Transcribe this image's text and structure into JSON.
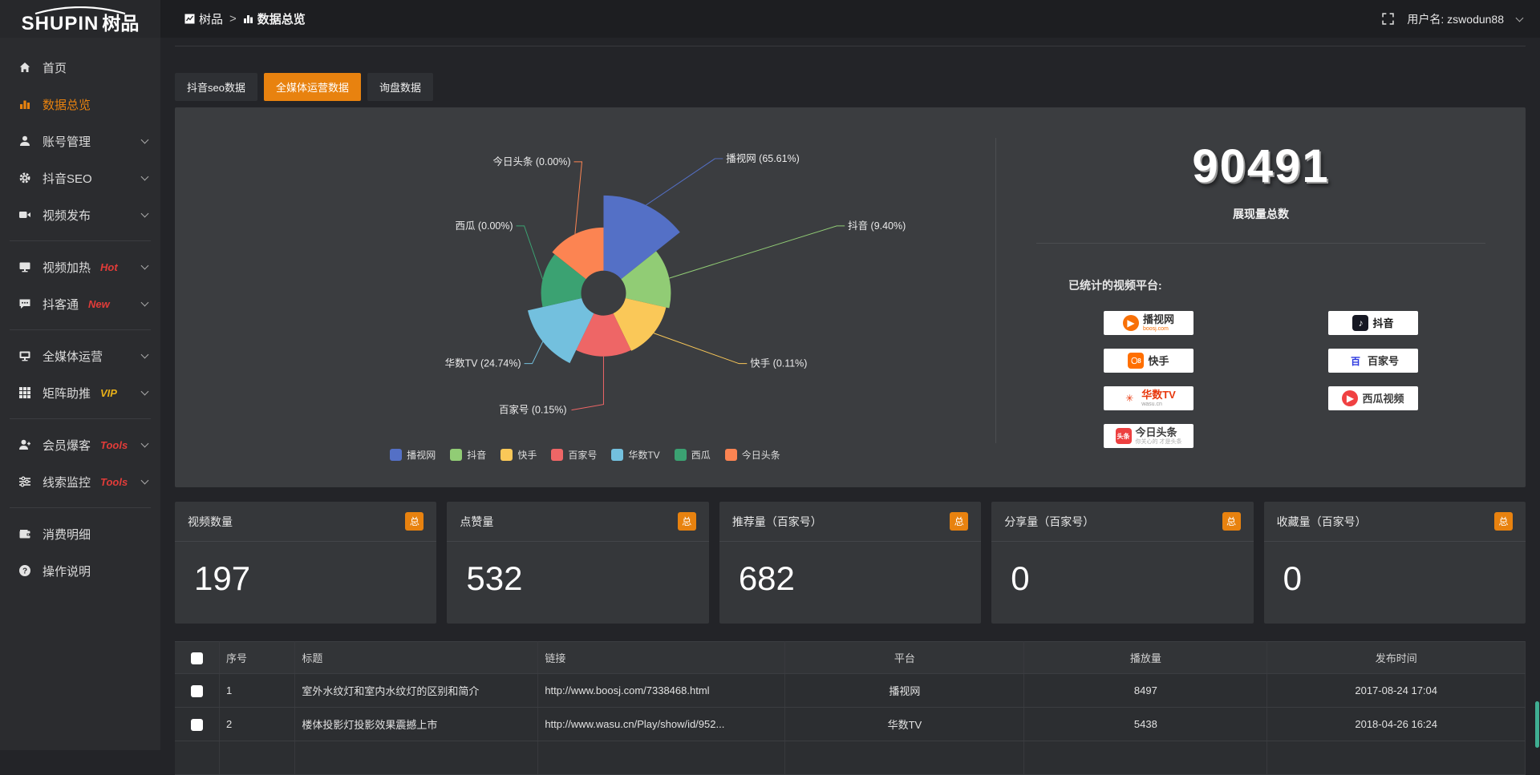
{
  "topbar": {
    "logo_en": "SHUPIN",
    "logo_cn": "树品",
    "breadcrumb": {
      "root": "树品",
      "separator": ">",
      "current": "数据总览"
    },
    "username": "用户名: zswodun88"
  },
  "sidebar": {
    "items": [
      {
        "icon": "home",
        "label": "首页"
      },
      {
        "icon": "bar-chart",
        "label": "数据总览",
        "active": true
      },
      {
        "icon": "user",
        "label": "账号管理",
        "expandable": true
      },
      {
        "icon": "gear",
        "label": "抖音SEO",
        "expandable": true
      },
      {
        "icon": "video",
        "label": "视频发布",
        "expandable": true
      },
      {
        "type": "divider"
      },
      {
        "icon": "monitor",
        "label": "视频加热",
        "badge": "Hot",
        "badge_color": "#e23c39",
        "expandable": true
      },
      {
        "icon": "chat",
        "label": "抖客通",
        "badge": "New",
        "badge_color": "#e23c39",
        "expandable": true
      },
      {
        "type": "divider"
      },
      {
        "icon": "screen",
        "label": "全媒体运营",
        "expandable": true
      },
      {
        "icon": "grid",
        "label": "矩阵助推",
        "badge": "VIP",
        "badge_color": "#e8b019",
        "expandable": true
      },
      {
        "type": "divider"
      },
      {
        "icon": "member",
        "label": "会员爆客",
        "badge": "Tools",
        "badge_color": "#e23c39",
        "expandable": true
      },
      {
        "icon": "sliders",
        "label": "线索监控",
        "badge": "Tools",
        "badge_color": "#e23c39",
        "expandable": true
      },
      {
        "type": "divider"
      },
      {
        "icon": "wallet",
        "label": "消费明细"
      },
      {
        "icon": "question",
        "label": "操作说明"
      }
    ]
  },
  "tabs": [
    {
      "label": "抖音seo数据",
      "active": false
    },
    {
      "label": "全媒体运营数据",
      "active": true
    },
    {
      "label": "询盘数据",
      "active": false
    }
  ],
  "chart_data": {
    "type": "pie",
    "variant": "nightingale-rose",
    "title": "",
    "legend_position": "bottom",
    "label_format": "{name} ({pct}%)",
    "series": [
      {
        "name": "播视网",
        "pct": "65.61",
        "value": 65.61
      },
      {
        "name": "抖音",
        "pct": "9.40",
        "value": 9.4
      },
      {
        "name": "快手",
        "pct": "0.11",
        "value": 0.11
      },
      {
        "name": "百家号",
        "pct": "0.15",
        "value": 0.15
      },
      {
        "name": "华数TV",
        "pct": "24.74",
        "value": 24.74
      },
      {
        "name": "西瓜",
        "pct": "0.00",
        "value": 0.0
      },
      {
        "name": "今日头条",
        "pct": "0.00",
        "value": 0.0
      }
    ],
    "colors": [
      "#5470c6",
      "#91cc75",
      "#fac858",
      "#ee6666",
      "#73c0de",
      "#3ba272",
      "#fc8452"
    ]
  },
  "summary": {
    "total_value": "90491",
    "total_label": "展现量总数",
    "platforms_title": "已统计的视频平台:",
    "badges_left": [
      {
        "main": "播视网",
        "sub": "boosj.com",
        "sub_color": "#f87007",
        "main_color": "#333333",
        "glyph": "▶",
        "glyph_bg": "#f87007",
        "glyph_fg": "#ffffff",
        "round": true
      },
      {
        "main": "快手",
        "main_color": "#333333",
        "glyph": "〇8",
        "glyph_bg": "#ff6f00",
        "glyph_fg": "#ffffff"
      },
      {
        "main": "华数TV",
        "sub": "wasu.cn",
        "sub_color": "#999999",
        "main_color": "#e8380d",
        "glyph": "✳",
        "glyph_bg": "#ffffff",
        "glyph_fg": "#e8380d"
      },
      {
        "main": "今日头条",
        "sub": "你关心的 才是头条",
        "sub_color": "#aaaaaa",
        "main_color": "#3e3e3e",
        "glyph": "头条",
        "glyph_bg": "#ed4040",
        "glyph_fg": "#ffffff"
      }
    ],
    "badges_right": [
      {
        "main": "抖音",
        "main_color": "#161616",
        "glyph": "♪",
        "glyph_bg": "#161823",
        "glyph_fg": "#ffffff"
      },
      {
        "main": "百家号",
        "main_color": "#333333",
        "glyph": "百",
        "glyph_bg": "#ffffff",
        "glyph_fg": "#2d39e0"
      },
      {
        "main": "西瓜视频",
        "main_color": "#3e3e3e",
        "glyph": "▶",
        "glyph_bg": "#f04142",
        "glyph_fg": "#ffffff",
        "round": true
      }
    ]
  },
  "stat_cards": [
    {
      "title": "视频数量",
      "badge": "总",
      "value": "197"
    },
    {
      "title": "点赞量",
      "badge": "总",
      "value": "532"
    },
    {
      "title": "推荐量（百家号）",
      "badge": "总",
      "value": "682"
    },
    {
      "title": "分享量（百家号）",
      "badge": "总",
      "value": "0"
    },
    {
      "title": "收藏量（百家号）",
      "badge": "总",
      "value": "0"
    }
  ],
  "table": {
    "headers": [
      "序号",
      "标题",
      "链接",
      "平台",
      "播放量",
      "发布时间"
    ],
    "rows": [
      {
        "no": "1",
        "title": "室外水纹灯和室内水纹灯的区别和简介",
        "link": "http://www.boosj.com/7338468.html",
        "platform": "播视网",
        "plays": "8497",
        "time": "2017-08-24 17:04"
      },
      {
        "no": "2",
        "title": "楼体投影灯投影效果震撼上市",
        "link": "http://www.wasu.cn/Play/show/id/952...",
        "platform": "华数TV",
        "plays": "5438",
        "time": "2018-04-26 16:24"
      }
    ]
  }
}
